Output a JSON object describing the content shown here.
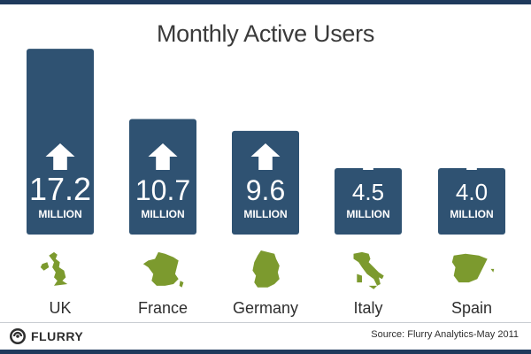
{
  "chart_data": {
    "type": "bar",
    "title": "Monthly Active Users",
    "categories": [
      "UK",
      "France",
      "Germany",
      "Italy",
      "Spain"
    ],
    "values": [
      17.2,
      10.7,
      9.6,
      4.5,
      4.0
    ],
    "value_labels": [
      "17.2",
      "10.7",
      "9.6",
      "4.5",
      "4.0"
    ],
    "unit_label": "MILLION",
    "country_icons": [
      "uk-map-icon",
      "france-map-icon",
      "germany-map-icon",
      "italy-map-icon",
      "spain-map-icon"
    ],
    "bar_color": "#2f5272",
    "map_color": "#7c9a2e",
    "arrow_color": "#ffffff"
  },
  "footer": {
    "logo_text": "FLURRY",
    "source": "Source: Flurry Analytics-May 2011"
  }
}
